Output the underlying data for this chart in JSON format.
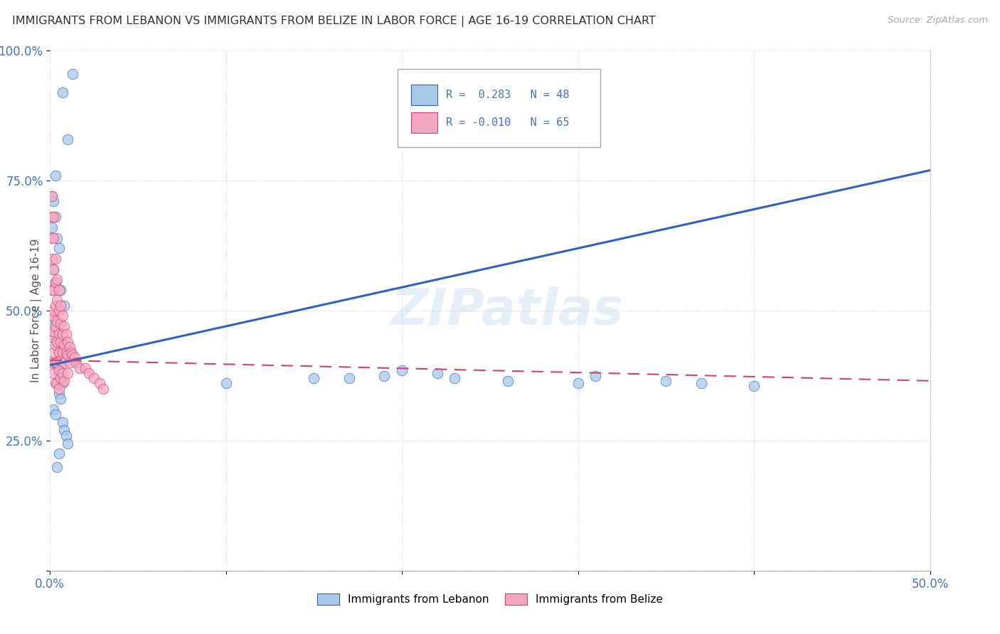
{
  "title": "IMMIGRANTS FROM LEBANON VS IMMIGRANTS FROM BELIZE IN LABOR FORCE | AGE 16-19 CORRELATION CHART",
  "source": "Source: ZipAtlas.com",
  "ylabel": "In Labor Force | Age 16-19",
  "legend_label1": "Immigrants from Lebanon",
  "legend_label2": "Immigrants from Belize",
  "r1": 0.283,
  "n1": 48,
  "r2": -0.01,
  "n2": 65,
  "color_lebanon": "#a8c8e8",
  "color_belize": "#f4a8c0",
  "color_line_lebanon": "#3060c0",
  "color_line_belize": "#d04070",
  "xlim": [
    0.0,
    0.5
  ],
  "ylim": [
    0.0,
    1.0
  ],
  "watermark": "ZIPatlas",
  "lebanon_x": [
    0.007,
    0.01,
    0.013,
    0.003,
    0.001,
    0.002,
    0.003,
    0.001,
    0.004,
    0.005,
    0.002,
    0.003,
    0.006,
    0.008,
    0.001,
    0.002,
    0.003,
    0.004,
    0.005,
    0.006,
    0.003,
    0.004,
    0.005,
    0.006,
    0.007,
    0.005,
    0.006,
    0.002,
    0.003,
    0.007,
    0.008,
    0.009,
    0.01,
    0.005,
    0.004,
    0.15,
    0.2,
    0.22,
    0.26,
    0.3,
    0.31,
    0.35,
    0.37,
    0.4,
    0.1,
    0.17,
    0.19,
    0.23
  ],
  "lebanon_y": [
    0.92,
    0.83,
    0.955,
    0.76,
    0.72,
    0.71,
    0.68,
    0.66,
    0.64,
    0.62,
    0.58,
    0.555,
    0.54,
    0.51,
    0.49,
    0.47,
    0.45,
    0.44,
    0.42,
    0.42,
    0.4,
    0.395,
    0.385,
    0.37,
    0.36,
    0.34,
    0.33,
    0.31,
    0.3,
    0.285,
    0.27,
    0.26,
    0.245,
    0.225,
    0.2,
    0.37,
    0.385,
    0.38,
    0.365,
    0.36,
    0.375,
    0.365,
    0.36,
    0.355,
    0.36,
    0.37,
    0.375,
    0.37
  ],
  "belize_x": [
    0.001,
    0.001,
    0.001,
    0.001,
    0.001,
    0.001,
    0.001,
    0.001,
    0.002,
    0.002,
    0.002,
    0.002,
    0.002,
    0.002,
    0.002,
    0.002,
    0.003,
    0.003,
    0.003,
    0.003,
    0.003,
    0.003,
    0.003,
    0.004,
    0.004,
    0.004,
    0.004,
    0.004,
    0.004,
    0.005,
    0.005,
    0.005,
    0.005,
    0.005,
    0.005,
    0.006,
    0.006,
    0.006,
    0.006,
    0.006,
    0.007,
    0.007,
    0.007,
    0.007,
    0.008,
    0.008,
    0.008,
    0.008,
    0.009,
    0.009,
    0.01,
    0.01,
    0.01,
    0.011,
    0.011,
    0.012,
    0.013,
    0.014,
    0.015,
    0.017,
    0.02,
    0.022,
    0.025,
    0.028,
    0.03
  ],
  "belize_y": [
    0.72,
    0.68,
    0.64,
    0.6,
    0.54,
    0.49,
    0.45,
    0.4,
    0.68,
    0.64,
    0.58,
    0.54,
    0.5,
    0.46,
    0.42,
    0.38,
    0.6,
    0.555,
    0.51,
    0.47,
    0.435,
    0.4,
    0.36,
    0.56,
    0.52,
    0.48,
    0.44,
    0.4,
    0.36,
    0.54,
    0.5,
    0.455,
    0.42,
    0.385,
    0.35,
    0.51,
    0.475,
    0.44,
    0.405,
    0.37,
    0.49,
    0.455,
    0.42,
    0.38,
    0.47,
    0.435,
    0.4,
    0.365,
    0.455,
    0.42,
    0.44,
    0.415,
    0.38,
    0.43,
    0.4,
    0.42,
    0.415,
    0.41,
    0.4,
    0.39,
    0.39,
    0.38,
    0.37,
    0.36,
    0.35
  ]
}
